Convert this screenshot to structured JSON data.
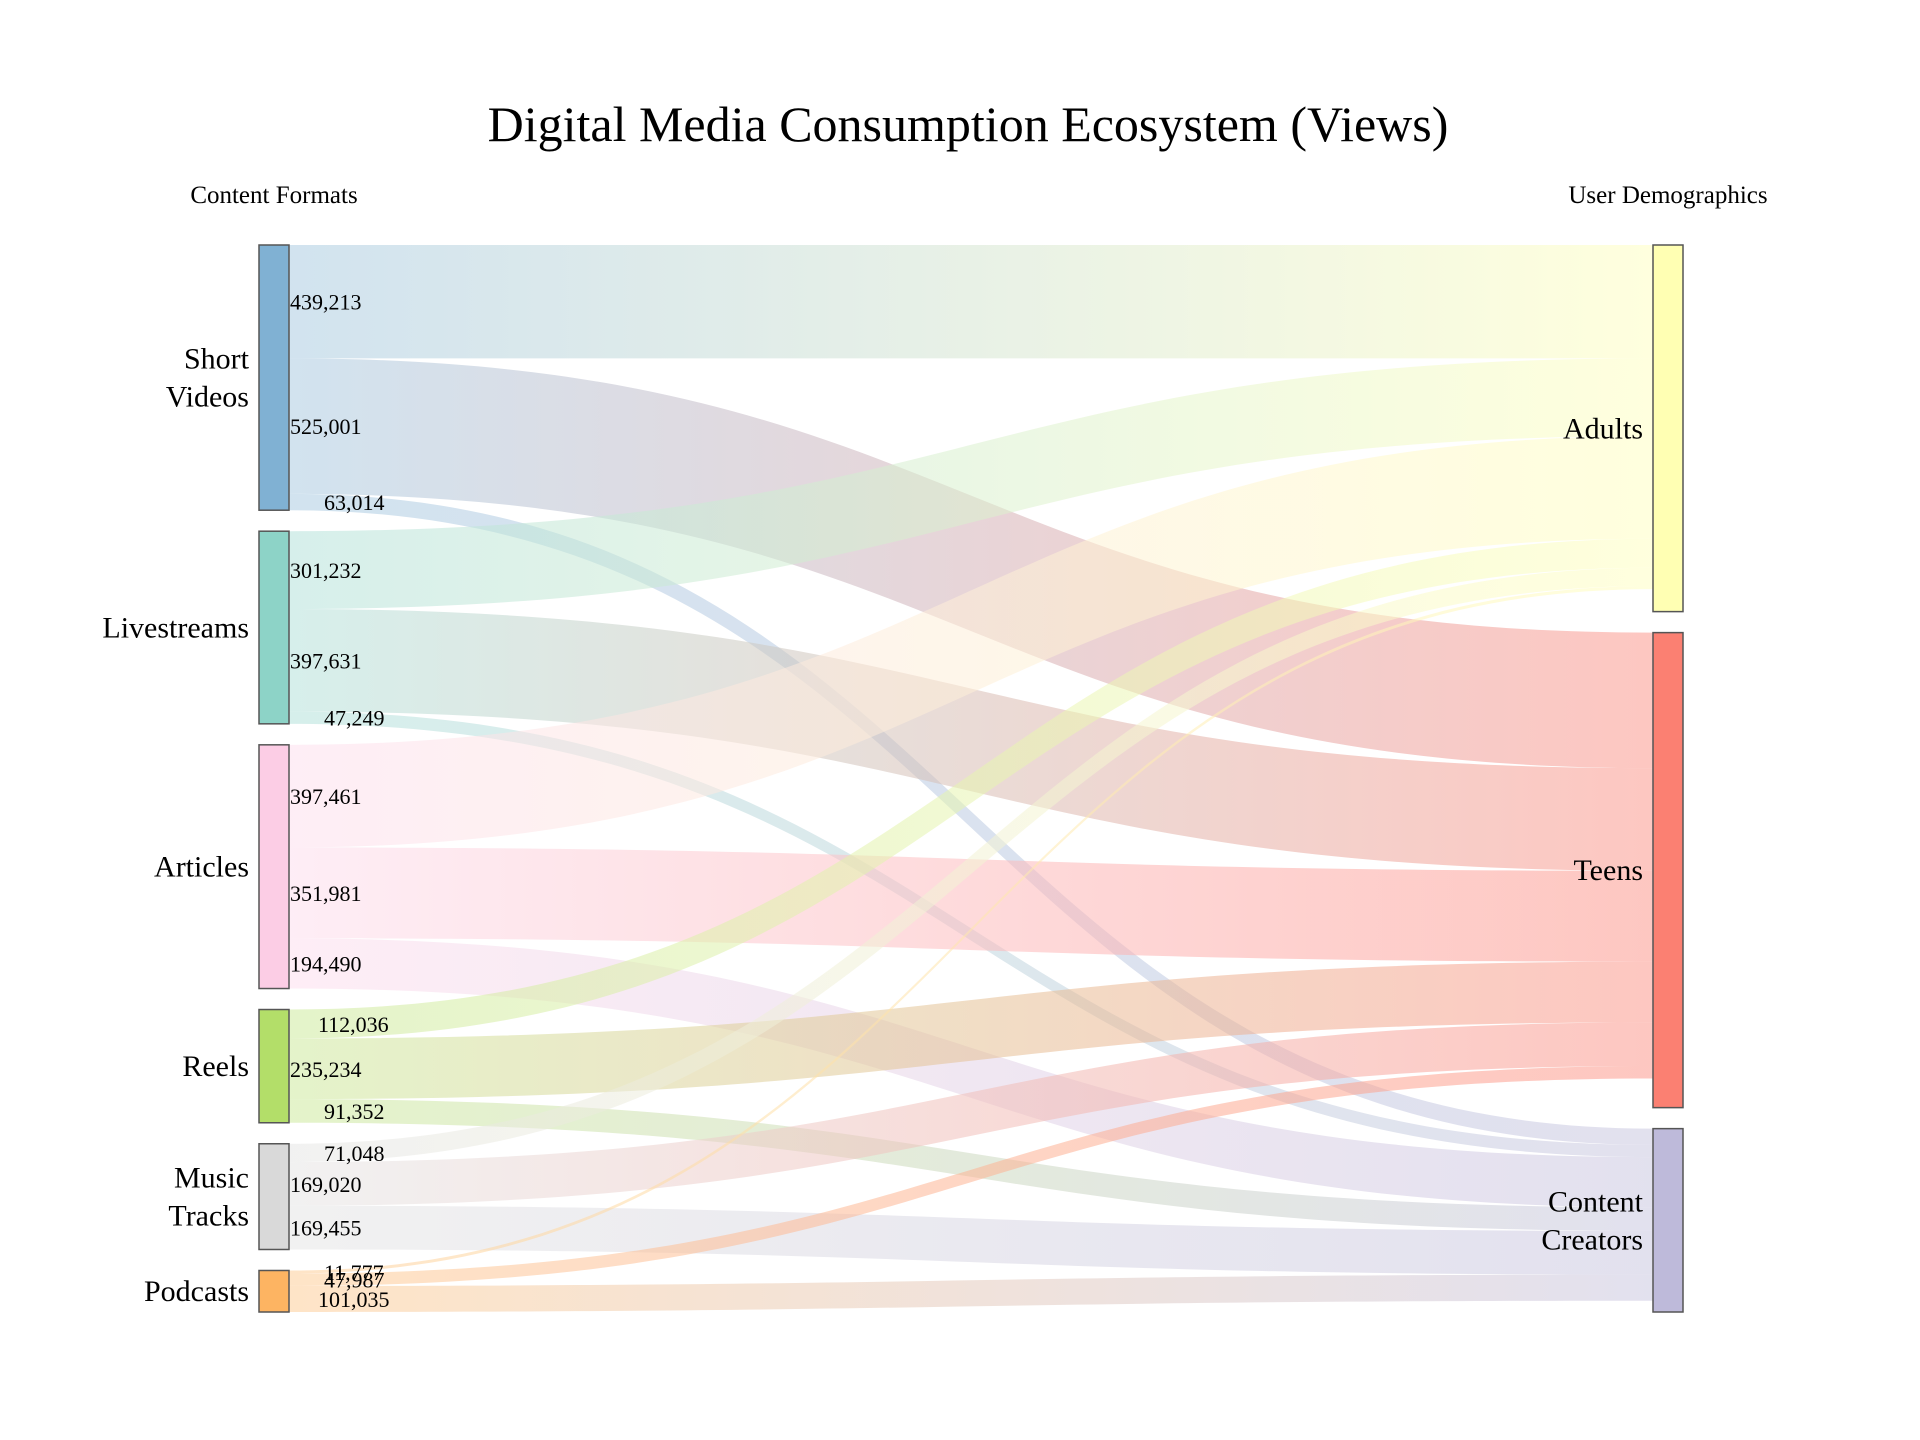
{
  "chart_data": {
    "type": "sankey",
    "title": "Digital Media Consumption Ecosystem (Views)",
    "left_header": "Content Formats",
    "right_header": "User Demographics",
    "sources": [
      {
        "id": "short",
        "label": [
          "Short",
          "Videos"
        ],
        "color": "#80b1d3"
      },
      {
        "id": "live",
        "label": [
          "Livestreams"
        ],
        "color": "#8dd3c7"
      },
      {
        "id": "articles",
        "label": [
          "Articles"
        ],
        "color": "#fccde5"
      },
      {
        "id": "reels",
        "label": [
          "Reels"
        ],
        "color": "#b3de69"
      },
      {
        "id": "music",
        "label": [
          "Music",
          "Tracks"
        ],
        "color": "#d9d9d9"
      },
      {
        "id": "podcasts",
        "label": [
          "Podcasts"
        ],
        "color": "#fdb462"
      }
    ],
    "targets": [
      {
        "id": "adults",
        "label": [
          "Adults"
        ],
        "color": "#ffffb3"
      },
      {
        "id": "teens",
        "label": [
          "Teens"
        ],
        "color": "#fb8072"
      },
      {
        "id": "creators",
        "label": [
          "Content",
          "Creators"
        ],
        "color": "#bebada"
      }
    ],
    "links": [
      {
        "source": "short",
        "target": "adults",
        "value": 439213,
        "label": "439,213"
      },
      {
        "source": "short",
        "target": "teens",
        "value": 525001,
        "label": "525,001"
      },
      {
        "source": "short",
        "target": "creators",
        "value": 63014,
        "label": "63,014"
      },
      {
        "source": "live",
        "target": "adults",
        "value": 301232,
        "label": "301,232"
      },
      {
        "source": "live",
        "target": "teens",
        "value": 397631,
        "label": "397,631"
      },
      {
        "source": "live",
        "target": "creators",
        "value": 47249,
        "label": "47,249"
      },
      {
        "source": "articles",
        "target": "adults",
        "value": 397461,
        "label": "397,461"
      },
      {
        "source": "articles",
        "target": "teens",
        "value": 351981,
        "label": "351,981"
      },
      {
        "source": "articles",
        "target": "creators",
        "value": 194490,
        "label": "194,490"
      },
      {
        "source": "reels",
        "target": "adults",
        "value": 112036,
        "label": "112,036"
      },
      {
        "source": "reels",
        "target": "teens",
        "value": 235234,
        "label": "235,234"
      },
      {
        "source": "reels",
        "target": "creators",
        "value": 91352,
        "label": "91,352"
      },
      {
        "source": "music",
        "target": "adults",
        "value": 71048,
        "label": "71,048"
      },
      {
        "source": "music",
        "target": "teens",
        "value": 169020,
        "label": "169,020"
      },
      {
        "source": "music",
        "target": "creators",
        "value": 169455,
        "label": "169,455"
      },
      {
        "source": "podcasts",
        "target": "adults",
        "value": 11777,
        "label": "11,777"
      },
      {
        "source": "podcasts",
        "target": "teens",
        "value": 47987,
        "label": "47,987"
      },
      {
        "source": "podcasts",
        "target": "creators",
        "value": 101035,
        "label": "101,035"
      }
    ]
  }
}
